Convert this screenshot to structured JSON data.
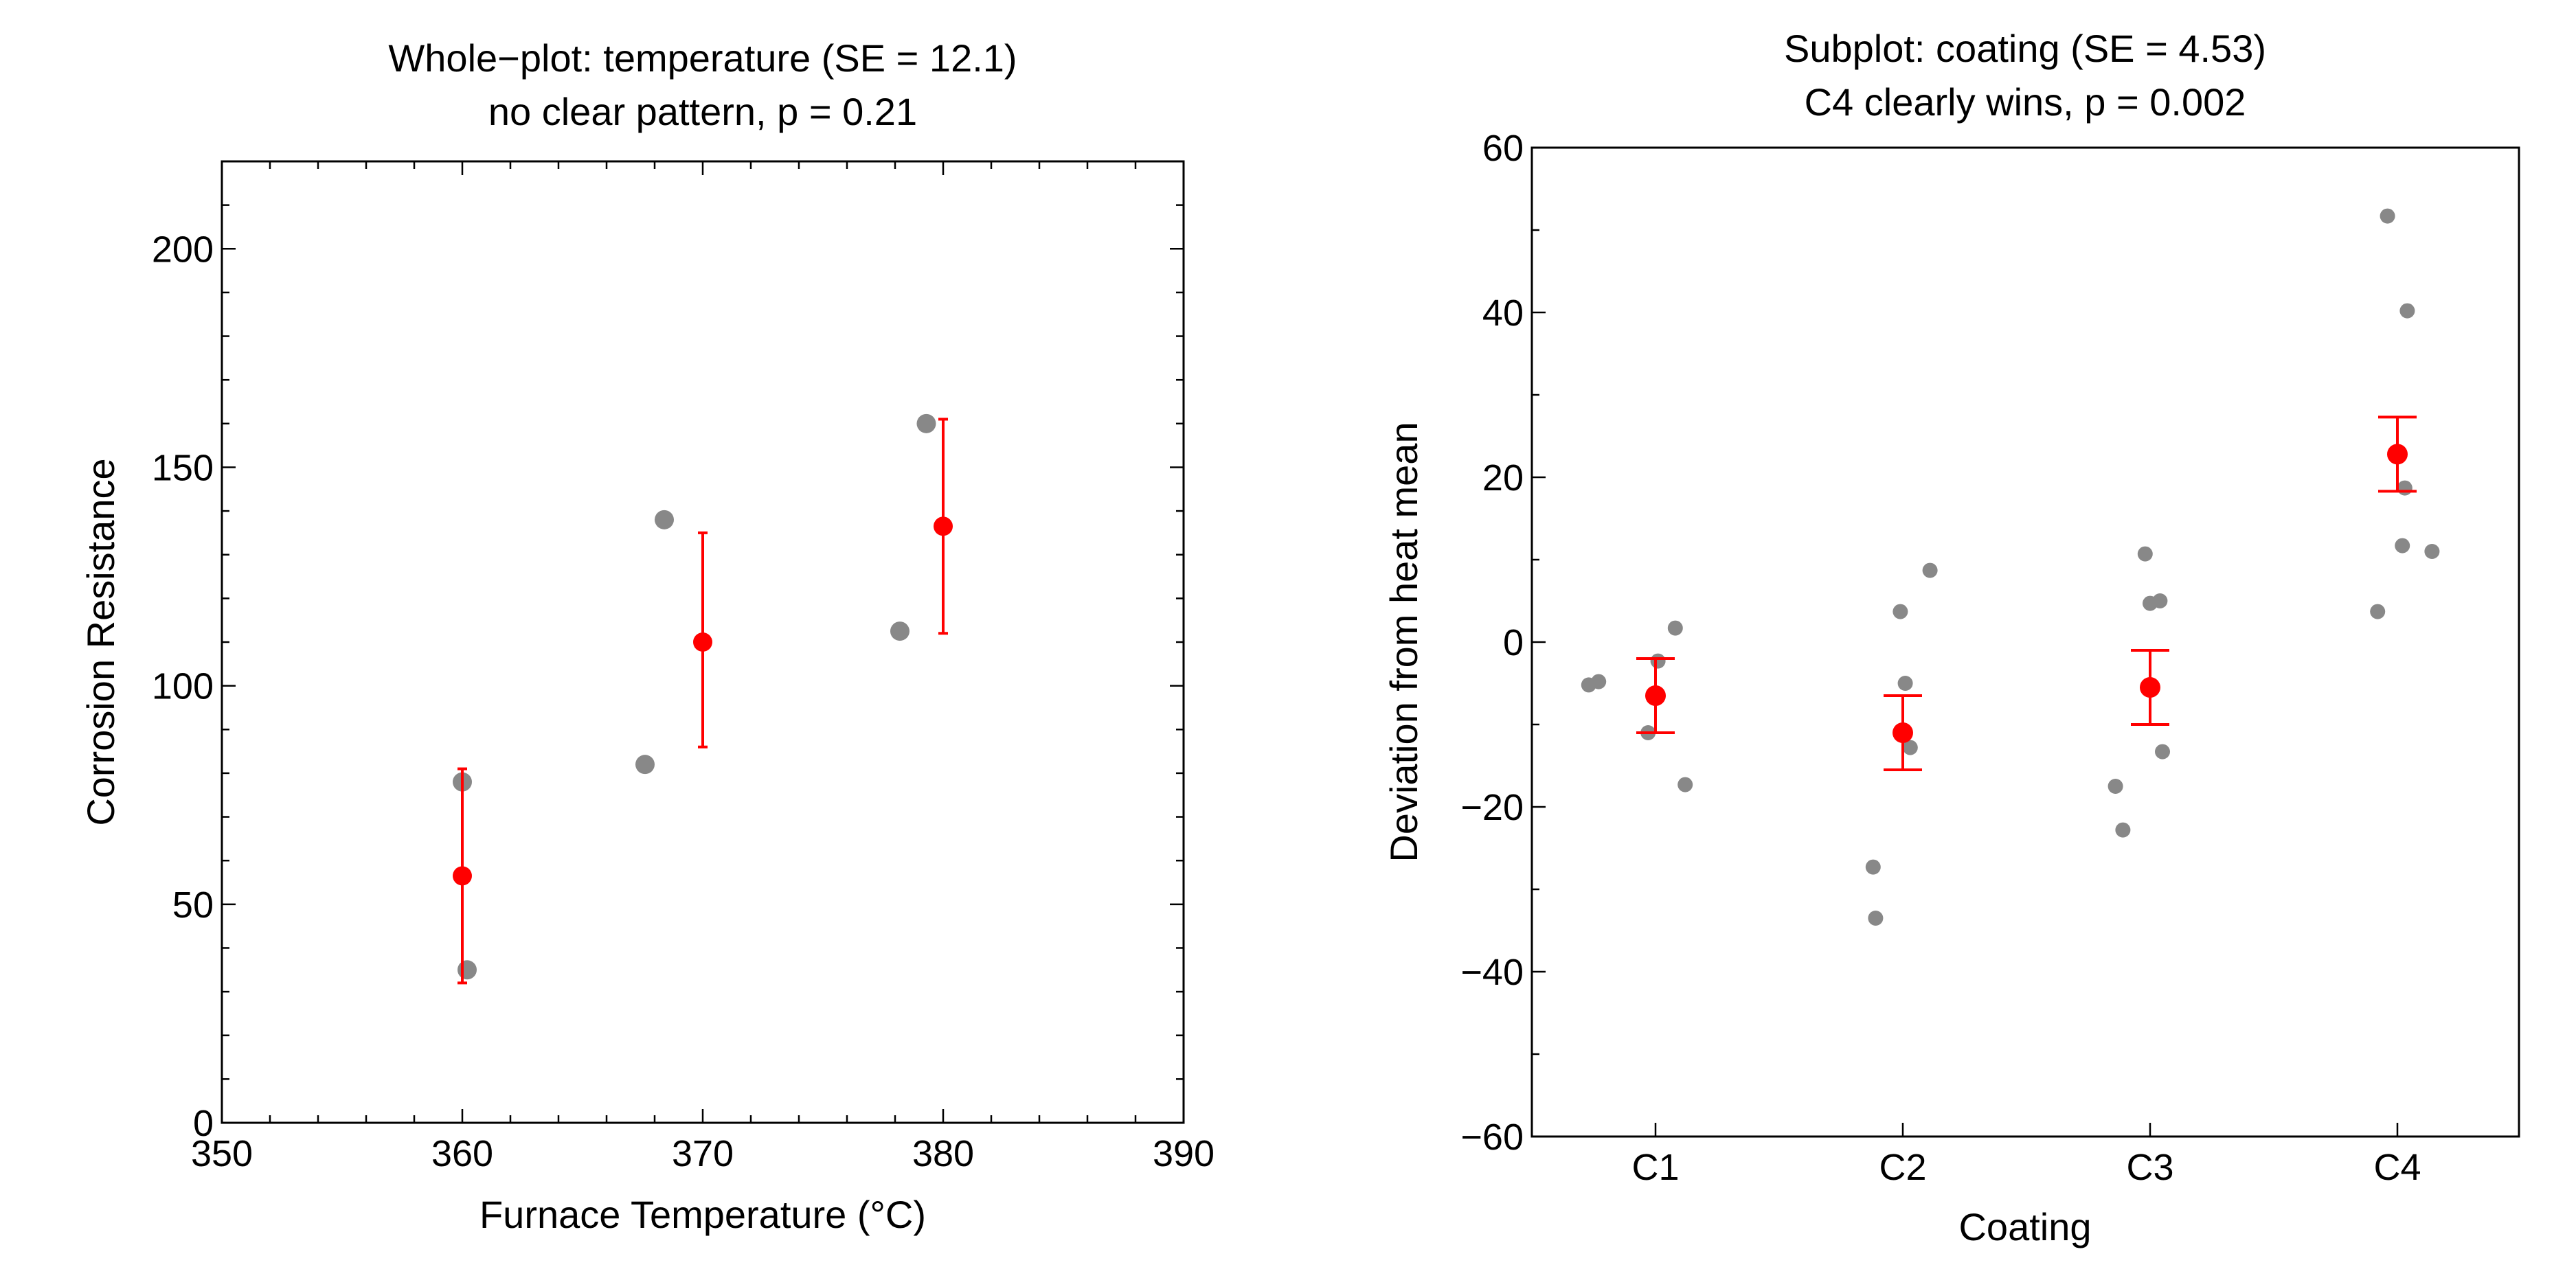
{
  "chart_data": [
    {
      "type": "scatter",
      "title": [
        "Whole−plot: temperature (SE = 12.1)",
        "no clear pattern, p = 0.21"
      ],
      "xlabel": "Furnace Temperature (°C)",
      "ylabel": "Corrosion Resistance",
      "xlim": [
        350,
        390
      ],
      "ylim": [
        0,
        220
      ],
      "xticks": [
        350,
        360,
        370,
        380,
        390
      ],
      "yticks": [
        0,
        50,
        100,
        150,
        200
      ],
      "x_minor_step": 2,
      "y_minor_step": 10,
      "colors": {
        "points": "#888888",
        "mean": "#ff0000"
      },
      "series": [
        {
          "points": [
            {
              "x": 360.0,
              "y": 78.0
            },
            {
              "x": 360.2,
              "y": 35.0
            },
            {
              "x": 367.6,
              "y": 82.0
            },
            {
              "x": 368.4,
              "y": 138.0
            },
            {
              "x": 378.2,
              "y": 112.5
            },
            {
              "x": 379.3,
              "y": 160.0
            }
          ]
        },
        {
          "error_bars": [
            {
              "x": 360,
              "mean": 56.5,
              "low": 32.0,
              "high": 81.0
            },
            {
              "x": 370,
              "mean": 110.0,
              "low": 86.0,
              "high": 135.0
            },
            {
              "x": 380,
              "mean": 136.5,
              "low": 112.0,
              "high": 161.0
            }
          ]
        }
      ]
    },
    {
      "type": "scatter",
      "title": [
        "Subplot: coating (SE = 4.53)",
        "C4 clearly wins, p = 0.002"
      ],
      "xlabel": "Coating",
      "ylabel": "Deviation from heat mean",
      "categories": [
        "C1",
        "C2",
        "C3",
        "C4"
      ],
      "ylim": [
        -60,
        60
      ],
      "yticks": [
        -60,
        -40,
        -20,
        0,
        20,
        40,
        60
      ],
      "ytick_labels": [
        "−60",
        "−40",
        "−20",
        "0",
        "20",
        "40",
        "60"
      ],
      "y_minor_step": 10,
      "colors": {
        "points": "#888888",
        "mean": "#ff0000"
      },
      "series": [
        {
          "points": [
            {
              "x": "C1",
              "offset": -0.27,
              "y": -5.2
            },
            {
              "x": "C1",
              "offset": -0.23,
              "y": -4.8
            },
            {
              "x": "C1",
              "offset": -0.03,
              "y": -11.0
            },
            {
              "x": "C1",
              "offset": 0.01,
              "y": -2.3
            },
            {
              "x": "C1",
              "offset": 0.08,
              "y": 1.7
            },
            {
              "x": "C1",
              "offset": 0.12,
              "y": -17.3
            },
            {
              "x": "C2",
              "offset": -0.12,
              "y": -27.3
            },
            {
              "x": "C2",
              "offset": -0.11,
              "y": -33.5
            },
            {
              "x": "C2",
              "offset": -0.01,
              "y": 3.7
            },
            {
              "x": "C2",
              "offset": 0.01,
              "y": -5.0
            },
            {
              "x": "C2",
              "offset": 0.03,
              "y": -12.8
            },
            {
              "x": "C2",
              "offset": 0.11,
              "y": 8.7
            },
            {
              "x": "C3",
              "offset": -0.14,
              "y": -17.5
            },
            {
              "x": "C3",
              "offset": -0.11,
              "y": -22.8
            },
            {
              "x": "C3",
              "offset": -0.02,
              "y": 10.7
            },
            {
              "x": "C3",
              "offset": 0.0,
              "y": 4.7
            },
            {
              "x": "C3",
              "offset": 0.04,
              "y": 5.0
            },
            {
              "x": "C3",
              "offset": 0.05,
              "y": -13.3
            },
            {
              "x": "C4",
              "offset": -0.08,
              "y": 3.7
            },
            {
              "x": "C4",
              "offset": -0.04,
              "y": 51.7
            },
            {
              "x": "C4",
              "offset": 0.02,
              "y": 11.7
            },
            {
              "x": "C4",
              "offset": 0.03,
              "y": 18.7
            },
            {
              "x": "C4",
              "offset": 0.04,
              "y": 40.2
            },
            {
              "x": "C4",
              "offset": 0.14,
              "y": 11.0
            }
          ]
        },
        {
          "error_bars": [
            {
              "x": "C1",
              "mean": -6.5,
              "low": -11.0,
              "high": -2.0
            },
            {
              "x": "C2",
              "mean": -11.0,
              "low": -15.5,
              "high": -6.5
            },
            {
              "x": "C3",
              "mean": -5.5,
              "low": -10.0,
              "high": -1.0
            },
            {
              "x": "C4",
              "mean": 22.8,
              "low": 18.3,
              "high": 27.3
            }
          ]
        }
      ]
    }
  ]
}
